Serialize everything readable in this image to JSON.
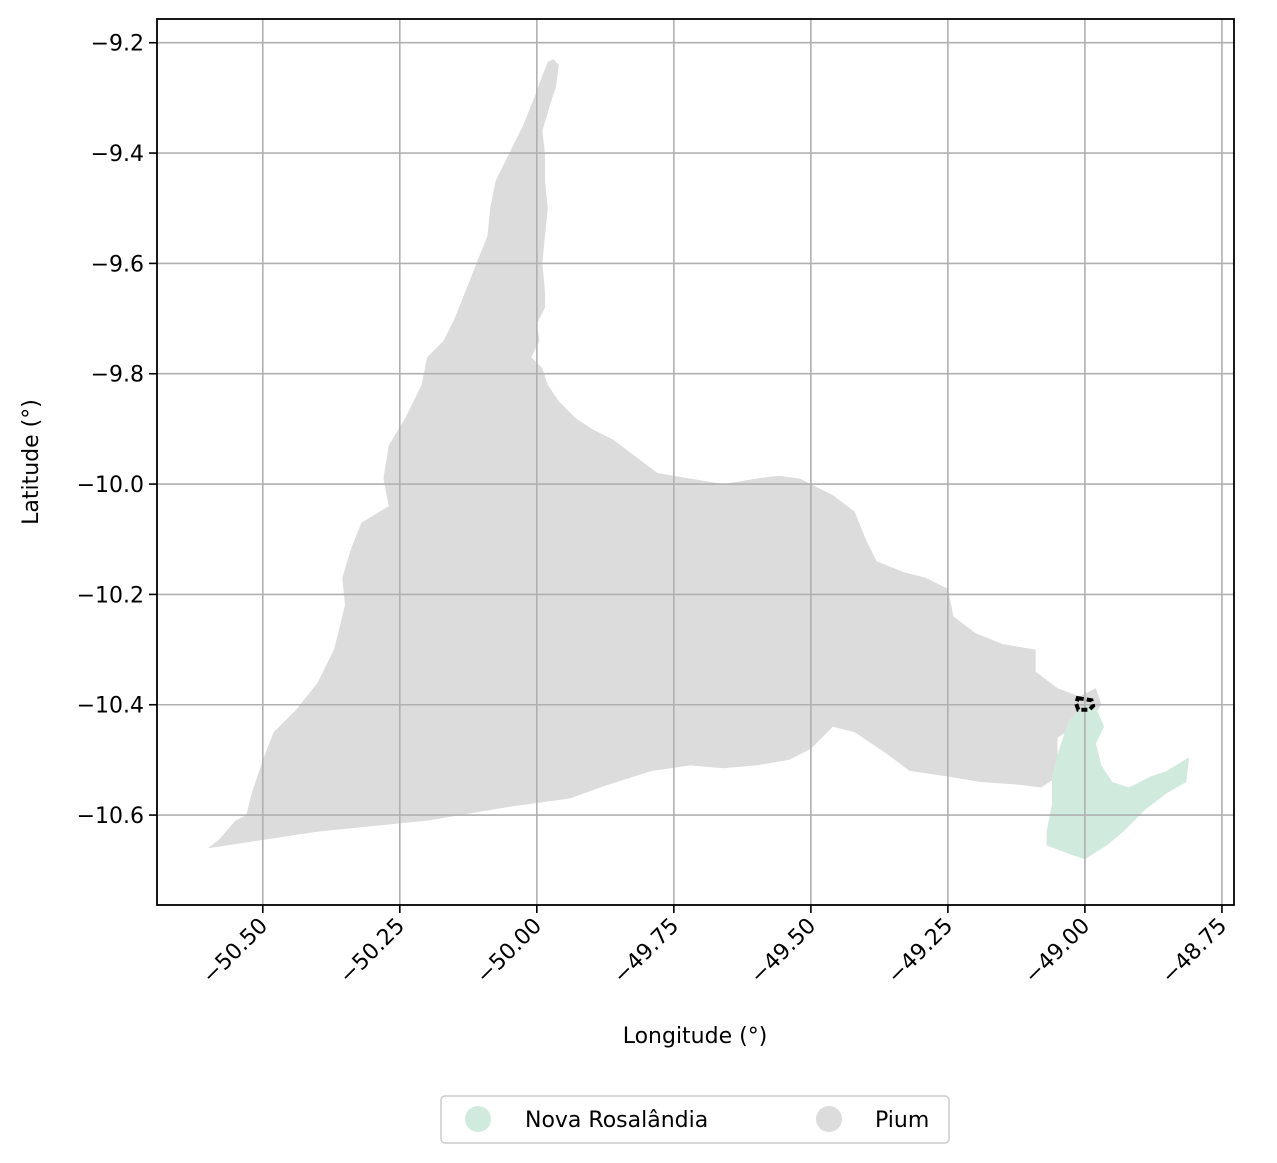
{
  "chart_data": {
    "type": "map",
    "xlabel": "Longitude (°)",
    "ylabel": "Latitude (°)",
    "xlim": [
      -50.693,
      -48.728
    ],
    "ylim": [
      -10.763,
      -9.157
    ],
    "x_ticks": [
      -50.5,
      -50.25,
      -50.0,
      -49.75,
      -49.5,
      -49.25,
      -49.0,
      -48.75
    ],
    "x_tick_labels": [
      "−50.50",
      "−50.25",
      "−50.00",
      "−49.75",
      "−49.50",
      "−49.25",
      "−49.00",
      "−48.75"
    ],
    "y_ticks": [
      -9.2,
      -9.4,
      -9.6,
      -9.8,
      -10.0,
      -10.2,
      -10.4,
      -10.6
    ],
    "y_tick_labels": [
      "−9.2",
      "−9.4",
      "−9.6",
      "−9.8",
      "−10.0",
      "−10.2",
      "−10.4",
      "−10.6"
    ],
    "grid": true,
    "legend": {
      "placement": "bottom-center",
      "columns": 2,
      "entries": [
        {
          "name": "Nova Rosalândia",
          "color": "#d0ebdd"
        },
        {
          "name": "Pium",
          "color": "#dcdcdc"
        }
      ]
    },
    "regions": [
      {
        "name": "Pium",
        "color": "#dcdcdc",
        "coords": [
          [
            -49.97,
            -9.23
          ],
          [
            -49.96,
            -9.24
          ],
          [
            -49.965,
            -9.28
          ],
          [
            -49.975,
            -9.31
          ],
          [
            -49.99,
            -9.36
          ],
          [
            -49.985,
            -9.4
          ],
          [
            -49.985,
            -9.45
          ],
          [
            -49.98,
            -9.5
          ],
          [
            -49.985,
            -9.55
          ],
          [
            -49.99,
            -9.6
          ],
          [
            -49.985,
            -9.65
          ],
          [
            -49.985,
            -9.68
          ],
          [
            -50.0,
            -9.71
          ],
          [
            -49.995,
            -9.74
          ],
          [
            -50.01,
            -9.77
          ],
          [
            -49.99,
            -9.79
          ],
          [
            -49.98,
            -9.82
          ],
          [
            -49.96,
            -9.85
          ],
          [
            -49.93,
            -9.88
          ],
          [
            -49.9,
            -9.9
          ],
          [
            -49.86,
            -9.92
          ],
          [
            -49.82,
            -9.95
          ],
          [
            -49.78,
            -9.98
          ],
          [
            -49.72,
            -9.99
          ],
          [
            -49.66,
            -10.0
          ],
          [
            -49.6,
            -9.99
          ],
          [
            -49.56,
            -9.985
          ],
          [
            -49.52,
            -9.99
          ],
          [
            -49.46,
            -10.02
          ],
          [
            -49.42,
            -10.05
          ],
          [
            -49.4,
            -10.1
          ],
          [
            -49.38,
            -10.14
          ],
          [
            -49.33,
            -10.16
          ],
          [
            -49.29,
            -10.17
          ],
          [
            -49.25,
            -10.19
          ],
          [
            -49.24,
            -10.24
          ],
          [
            -49.2,
            -10.27
          ],
          [
            -49.15,
            -10.29
          ],
          [
            -49.09,
            -10.3
          ],
          [
            -49.09,
            -10.34
          ],
          [
            -49.05,
            -10.37
          ],
          [
            -49.01,
            -10.385
          ],
          [
            -48.98,
            -10.37
          ],
          [
            -48.97,
            -10.4
          ],
          [
            -48.99,
            -10.43
          ],
          [
            -49.02,
            -10.44
          ],
          [
            -49.05,
            -10.46
          ],
          [
            -49.05,
            -10.53
          ],
          [
            -49.08,
            -10.55
          ],
          [
            -49.12,
            -10.545
          ],
          [
            -49.19,
            -10.54
          ],
          [
            -49.25,
            -10.53
          ],
          [
            -49.32,
            -10.52
          ],
          [
            -49.36,
            -10.49
          ],
          [
            -49.42,
            -10.45
          ],
          [
            -49.46,
            -10.44
          ],
          [
            -49.5,
            -10.48
          ],
          [
            -49.54,
            -10.5
          ],
          [
            -49.6,
            -10.51
          ],
          [
            -49.66,
            -10.515
          ],
          [
            -49.72,
            -10.51
          ],
          [
            -49.79,
            -10.52
          ],
          [
            -49.87,
            -10.545
          ],
          [
            -49.94,
            -10.57
          ],
          [
            -50.05,
            -10.585
          ],
          [
            -50.2,
            -10.61
          ],
          [
            -50.4,
            -10.63
          ],
          [
            -50.6,
            -10.66
          ],
          [
            -50.58,
            -10.645
          ],
          [
            -50.55,
            -10.61
          ],
          [
            -50.53,
            -10.6
          ],
          [
            -50.52,
            -10.56
          ],
          [
            -50.5,
            -10.5
          ],
          [
            -50.48,
            -10.45
          ],
          [
            -50.44,
            -10.41
          ],
          [
            -50.4,
            -10.36
          ],
          [
            -50.37,
            -10.3
          ],
          [
            -50.35,
            -10.22
          ],
          [
            -50.355,
            -10.17
          ],
          [
            -50.34,
            -10.12
          ],
          [
            -50.32,
            -10.07
          ],
          [
            -50.27,
            -10.04
          ],
          [
            -50.28,
            -9.99
          ],
          [
            -50.27,
            -9.93
          ],
          [
            -50.24,
            -9.88
          ],
          [
            -50.21,
            -9.82
          ],
          [
            -50.2,
            -9.77
          ],
          [
            -50.17,
            -9.74
          ],
          [
            -50.15,
            -9.7
          ],
          [
            -50.13,
            -9.65
          ],
          [
            -50.11,
            -9.6
          ],
          [
            -50.09,
            -9.55
          ],
          [
            -50.085,
            -9.5
          ],
          [
            -50.075,
            -9.45
          ],
          [
            -50.05,
            -9.4
          ],
          [
            -50.025,
            -9.35
          ],
          [
            -50.005,
            -9.3
          ],
          [
            -49.99,
            -9.26
          ],
          [
            -49.98,
            -9.235
          ]
        ]
      },
      {
        "name": "Nova Rosalândia",
        "color": "#d0ebdd",
        "coords": [
          [
            -49.0,
            -10.4
          ],
          [
            -48.98,
            -10.405
          ],
          [
            -48.965,
            -10.44
          ],
          [
            -48.98,
            -10.47
          ],
          [
            -48.97,
            -10.51
          ],
          [
            -48.95,
            -10.54
          ],
          [
            -48.92,
            -10.55
          ],
          [
            -48.88,
            -10.53
          ],
          [
            -48.85,
            -10.52
          ],
          [
            -48.81,
            -10.495
          ],
          [
            -48.815,
            -10.54
          ],
          [
            -48.85,
            -10.56
          ],
          [
            -48.89,
            -10.59
          ],
          [
            -48.93,
            -10.63
          ],
          [
            -48.96,
            -10.655
          ],
          [
            -49.0,
            -10.68
          ],
          [
            -49.03,
            -10.67
          ],
          [
            -49.07,
            -10.655
          ],
          [
            -49.07,
            -10.63
          ],
          [
            -49.06,
            -10.58
          ],
          [
            -49.06,
            -10.53
          ],
          [
            -49.05,
            -10.49
          ],
          [
            -49.03,
            -10.43
          ]
        ]
      }
    ],
    "highlight_outline": {
      "style": "dashed",
      "color": "#000000",
      "coords": [
        [
          -49.013,
          -10.388
        ],
        [
          -48.988,
          -10.392
        ],
        [
          -48.985,
          -10.402
        ],
        [
          -48.992,
          -10.409
        ],
        [
          -49.012,
          -10.409
        ],
        [
          -49.016,
          -10.398
        ]
      ]
    }
  }
}
